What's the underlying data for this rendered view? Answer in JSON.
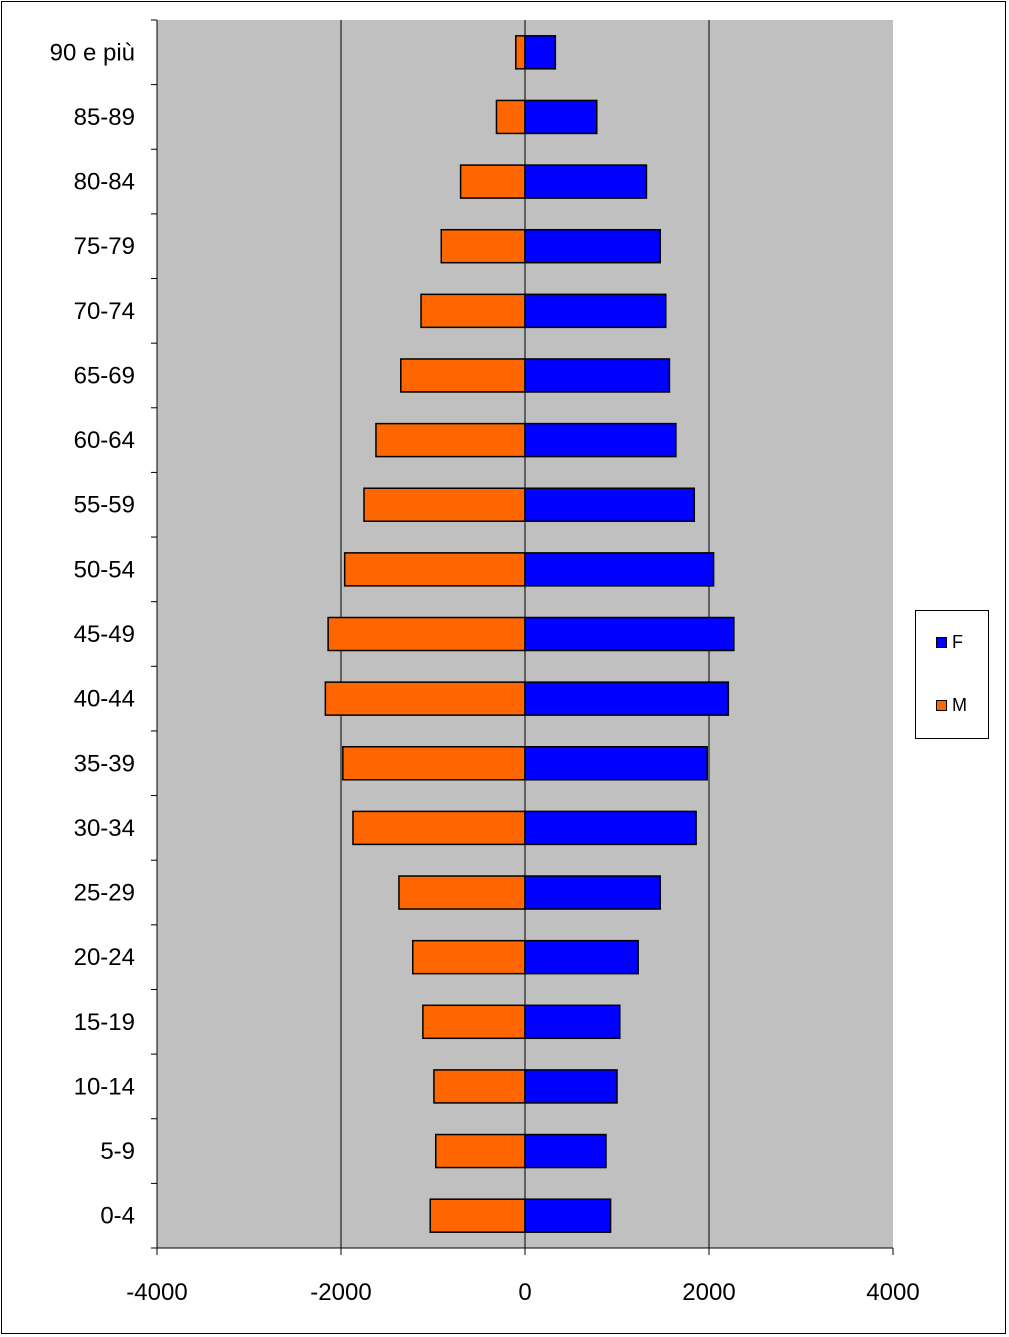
{
  "chart_data": {
    "type": "bar",
    "orientation": "horizontal",
    "categories": [
      "0-4",
      "5-9",
      "10-14",
      "15-19",
      "20-24",
      "25-29",
      "30-34",
      "35-39",
      "40-44",
      "45-49",
      "50-54",
      "55-59",
      "60-64",
      "65-69",
      "70-74",
      "75-79",
      "80-84",
      "85-89",
      "90 e più"
    ],
    "series": [
      {
        "name": "M",
        "color": "#ff6600",
        "values": [
          -1030,
          -970,
          -990,
          -1110,
          -1220,
          -1370,
          -1870,
          -1980,
          -2170,
          -2140,
          -1960,
          -1750,
          -1620,
          -1350,
          -1130,
          -910,
          -700,
          -310,
          -100
        ]
      },
      {
        "name": "F",
        "color": "#0000ff",
        "values": [
          930,
          880,
          1000,
          1030,
          1230,
          1470,
          1860,
          1980,
          2210,
          2270,
          2050,
          1840,
          1640,
          1570,
          1530,
          1470,
          1320,
          780,
          330
        ]
      }
    ],
    "xlim": [
      -4000,
      4000
    ],
    "xticks": [
      "-4000",
      "-2000",
      "0",
      "2000",
      "4000"
    ],
    "gridlines": [
      -2000,
      0,
      2000
    ],
    "plot_background": "#c0c0c0",
    "legend_position": "right",
    "title": "",
    "xlabel": "",
    "ylabel": ""
  },
  "legend": {
    "items": [
      {
        "label": "F",
        "color": "#0000ff"
      },
      {
        "label": "M",
        "color": "#ff6600"
      }
    ]
  }
}
